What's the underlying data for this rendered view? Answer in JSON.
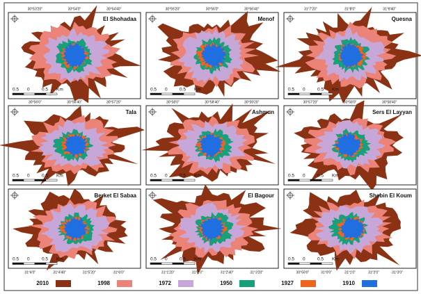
{
  "panels": [
    {
      "name": "El Shohadaa",
      "coords": [
        "30°53'20\"",
        "30°54'0\"",
        "30°54'40\""
      ]
    },
    {
      "name": "Menof",
      "coords": [
        "30°55'20\"",
        "30°56'0\"",
        "30°56'40\""
      ]
    },
    {
      "name": "Quesna",
      "coords": [
        "31°7'20\"",
        "31°8'0\"",
        "31°8'40\""
      ]
    },
    {
      "name": "Tala",
      "coords": [
        "30°56'0\"",
        "30°56'40\"",
        "30°57'20\""
      ]
    },
    {
      "name": "Ashmun",
      "coords": [
        "30°58'0\"",
        "30°58'40\"",
        "30°59'20\""
      ]
    },
    {
      "name": "Sers El Layyan",
      "coords": [
        "30°57'20\"",
        "30°58'0\"",
        "30°58'40\""
      ]
    },
    {
      "name": "Berket El Sabaa",
      "coords": [
        "31°4'0\"",
        "31°4'40\"",
        "31°5'20\"",
        "31°6'0\""
      ]
    },
    {
      "name": "El Bagour",
      "coords": [
        "31°1'20\"",
        "31°2'0\"",
        "31°2'40\"",
        "31°3'20\""
      ]
    },
    {
      "name": "Shebin El Koum",
      "coords": [
        "30°59'0\"",
        "31°0'0\"",
        "31°1'0\"",
        "31°2'0\"",
        "31°3'0\""
      ]
    }
  ],
  "scale": [
    "0.5",
    "0",
    "0.5",
    "Km"
  ],
  "legend": [
    {
      "label": "2010",
      "color": "#8b3214"
    },
    {
      "label": "1998",
      "color": "#ec8378"
    },
    {
      "label": "1972",
      "color": "#c7a6d8"
    },
    {
      "label": "1950",
      "color": "#17a07a"
    },
    {
      "label": "1927",
      "color": "#f0641e"
    },
    {
      "label": "1910",
      "color": "#1f6fe0"
    }
  ]
}
